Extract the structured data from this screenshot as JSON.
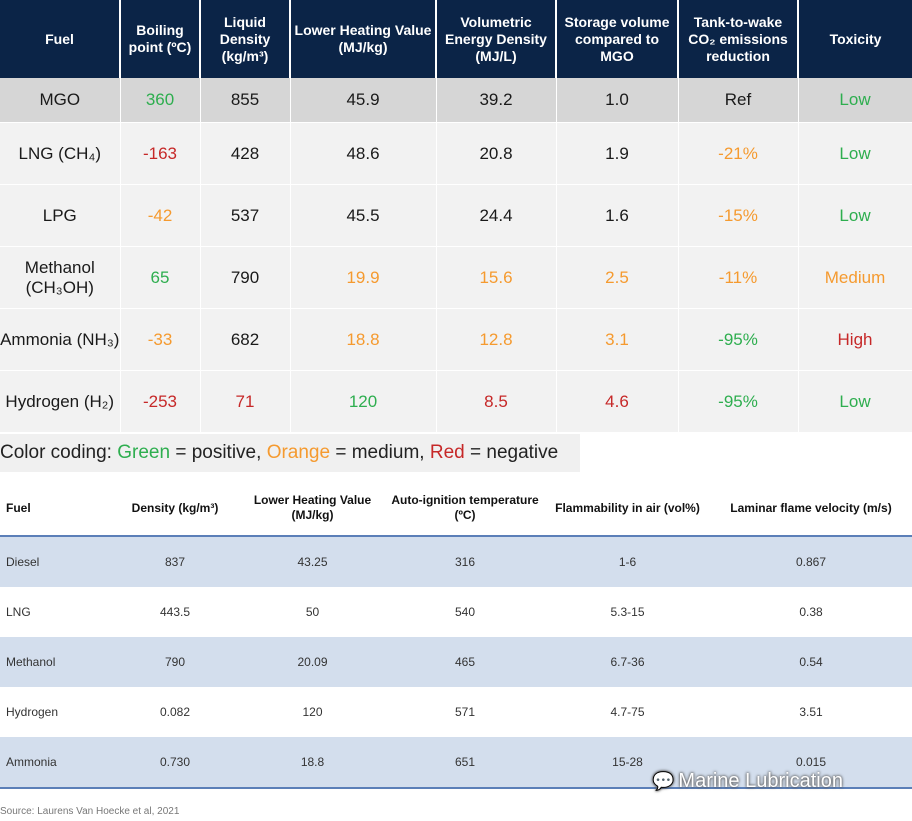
{
  "table1": {
    "headers": [
      "Fuel",
      "Boiling point (ºC)",
      "Liquid Density (kg/m³)",
      "Lower Heating Value (MJ/kg)",
      "Volumetric Energy Density (MJ/L)",
      "Storage volume compared to MGO",
      "Tank-to-wake CO₂ emissions reduction",
      "Toxicity"
    ],
    "rows": [
      {
        "fuel": "MGO",
        "bp": "360",
        "density": "855",
        "lhv": "45.9",
        "ved": "39.2",
        "storage": "1.0",
        "co2": "Ref",
        "tox": "Low"
      },
      {
        "fuel": "LNG (CH₄)",
        "bp": "-163",
        "density": "428",
        "lhv": "48.6",
        "ved": "20.8",
        "storage": "1.9",
        "co2": "-21%",
        "tox": "Low"
      },
      {
        "fuel": "LPG",
        "bp": "-42",
        "density": "537",
        "lhv": "45.5",
        "ved": "24.4",
        "storage": "1.6",
        "co2": "-15%",
        "tox": "Low"
      },
      {
        "fuel": "Methanol (CH₃OH)",
        "bp": "65",
        "density": "790",
        "lhv": "19.9",
        "ved": "15.6",
        "storage": "2.5",
        "co2": "-11%",
        "tox": "Medium"
      },
      {
        "fuel": "Ammonia (NH₃)",
        "bp": "-33",
        "density": "682",
        "lhv": "18.8",
        "ved": "12.8",
        "storage": "3.1",
        "co2": "-95%",
        "tox": "High"
      },
      {
        "fuel": "Hydrogen (H₂)",
        "bp": "-253",
        "density": "71",
        "lhv": "120",
        "ved": "8.5",
        "storage": "4.6",
        "co2": "-95%",
        "tox": "Low"
      }
    ],
    "colors": {
      "green": "#2eae4f",
      "orange": "#f59a2f",
      "red": "#c62828",
      "header_bg": "#0b2447"
    }
  },
  "legend": {
    "prefix": "Color coding: ",
    "green_word": "Green",
    "green_text": " = positive, ",
    "orange_word": "Orange",
    "orange_text": " = medium, ",
    "red_word": "Red",
    "red_text": " = negative"
  },
  "table2": {
    "headers": [
      "Fuel",
      "Density (kg/m³)",
      "Lower Heating Value (MJ/kg)",
      "Auto-ignition temperature (ºC)",
      "Flammability in air (vol%)",
      "Laminar flame velocity (m/s)"
    ],
    "rows": [
      {
        "fuel": "Diesel",
        "density": "837",
        "lhv": "43.25",
        "ait": "316",
        "flam": "1-6",
        "lfv": "0.867"
      },
      {
        "fuel": "LNG",
        "density": "443.5",
        "lhv": "50",
        "ait": "540",
        "flam": "5.3-15",
        "lfv": "0.38"
      },
      {
        "fuel": "Methanol",
        "density": "790",
        "lhv": "20.09",
        "ait": "465",
        "flam": "6.7-36",
        "lfv": "0.54"
      },
      {
        "fuel": "Hydrogen",
        "density": "0.082",
        "lhv": "120",
        "ait": "571",
        "flam": "4.7-75",
        "lfv": "3.51"
      },
      {
        "fuel": "Ammonia",
        "density": "0.730",
        "lhv": "18.8",
        "ait": "651",
        "flam": "15-28",
        "lfv": "0.015"
      }
    ]
  },
  "source": "Source: Laurens Van Hoecke et al, 2021",
  "watermark": "Marine Lubrication",
  "watermark_icon": "wechat-icon"
}
